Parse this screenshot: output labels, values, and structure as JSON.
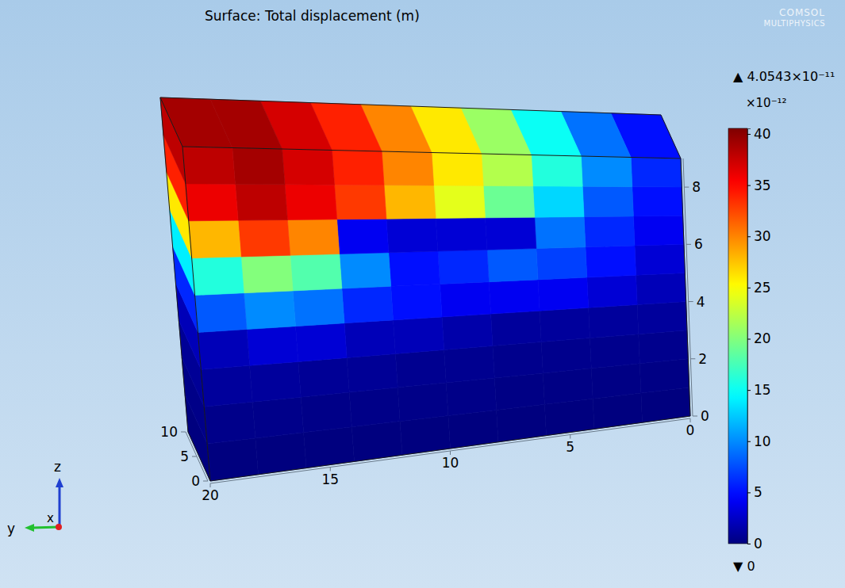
{
  "chart_data": {
    "type": "surface",
    "title": "Surface: Total displacement (m)",
    "xlabel": "x",
    "ylabel": "y",
    "zlabel": "z",
    "xlim": [
      0,
      10
    ],
    "xticks": [
      0,
      5,
      10
    ],
    "ylim": [
      0,
      20
    ],
    "yticks": [
      0,
      5,
      10,
      15,
      20
    ],
    "zlim": [
      0,
      9
    ],
    "zticks": [
      0,
      2,
      4,
      6,
      8
    ],
    "colorbar_lim": [
      0,
      40.543
    ],
    "colorbar_ticks": [
      0,
      5,
      10,
      15,
      20,
      25,
      30,
      35,
      40
    ],
    "colorbar_multiplier": "×10⁻¹²",
    "max": {
      "value": 40.543,
      "label": "▲ 4.0543×10⁻¹¹"
    },
    "min": {
      "value": 0,
      "label": "▼ 0"
    },
    "watermark": [
      "COMSOL",
      "MULTIPHYSICS"
    ],
    "front_cells": [
      [
        0,
        0,
        0,
        0,
        0,
        0,
        0,
        0,
        0,
        0
      ],
      [
        0.2,
        0.2,
        0.2,
        0.2,
        0.3,
        0.3,
        0.3,
        0.3,
        0.4,
        0.4
      ],
      [
        0.5,
        0.5,
        0.5,
        0.5,
        0.6,
        0.6,
        0.8,
        0.8,
        1,
        1
      ],
      [
        1,
        1,
        1,
        1,
        1.5,
        2,
        2,
        3,
        3,
        2
      ],
      [
        2,
        3,
        4,
        4,
        4,
        5,
        6,
        9,
        10,
        8
      ],
      [
        3,
        5,
        7,
        8,
        6,
        5,
        10,
        18,
        20,
        16
      ],
      [
        4,
        6,
        9,
        3,
        3,
        3,
        4,
        30,
        33,
        28
      ],
      [
        5,
        8,
        13,
        19,
        24,
        28,
        33,
        36,
        38,
        36
      ],
      [
        6,
        10,
        16,
        22,
        26,
        30,
        34,
        37,
        39,
        38
      ]
    ],
    "top_cells": [
      5,
      9,
      15,
      21,
      26,
      30,
      34,
      37,
      39,
      39
    ],
    "left_cells": [
      0,
      0.3,
      0.8,
      2,
      6,
      14,
      26,
      34,
      38
    ]
  }
}
